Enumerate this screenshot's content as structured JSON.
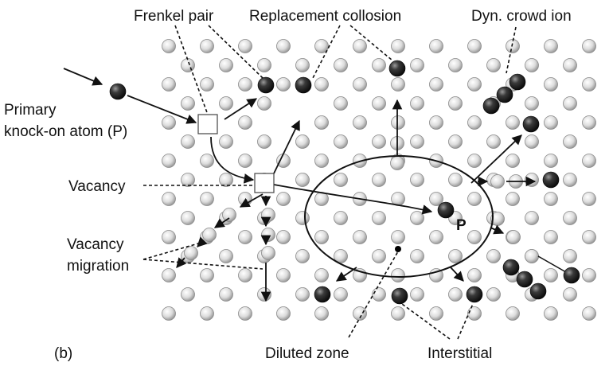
{
  "labels": {
    "frenkel_pair": "Frenkel pair",
    "replacement_collision": "Replacement collosion",
    "dyn_crowd_ion": "Dyn. crowd ion",
    "primary_line1": "Primary",
    "primary_line2": "knock-on atom (P)",
    "vacancy": "Vacancy",
    "vacancy_migration_line1": "Vacancy",
    "vacancy_migration_line2": "migration",
    "p_marker": "P",
    "panel": "(b)",
    "diluted_zone": "Diluted zone",
    "interstitial": "Interstitial"
  },
  "colors": {
    "background": "#ffffff",
    "atom_light": "#e9e9e9",
    "atom_shadow": "#9a9a9a",
    "atom_dark": "#2a2a2a",
    "line": "#111111"
  }
}
